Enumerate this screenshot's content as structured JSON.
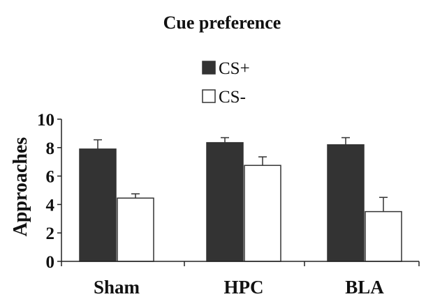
{
  "chart_data": {
    "type": "bar",
    "title": "Cue preference",
    "ylabel": "Approaches",
    "xlabel": "",
    "ylim": [
      0,
      10
    ],
    "yticks": [
      0,
      2,
      4,
      6,
      8,
      10
    ],
    "grid": false,
    "legend_position": "top-center",
    "categories": [
      "Sham",
      "HPC",
      "BLA"
    ],
    "series": [
      {
        "name": "CS+",
        "color": "#333333",
        "values": [
          7.9,
          8.35,
          8.2
        ],
        "errors": [
          0.65,
          0.35,
          0.5
        ]
      },
      {
        "name": "CS-",
        "color": "#ffffff",
        "values": [
          4.45,
          6.75,
          3.5
        ],
        "errors": [
          0.3,
          0.6,
          1.0
        ]
      }
    ]
  }
}
